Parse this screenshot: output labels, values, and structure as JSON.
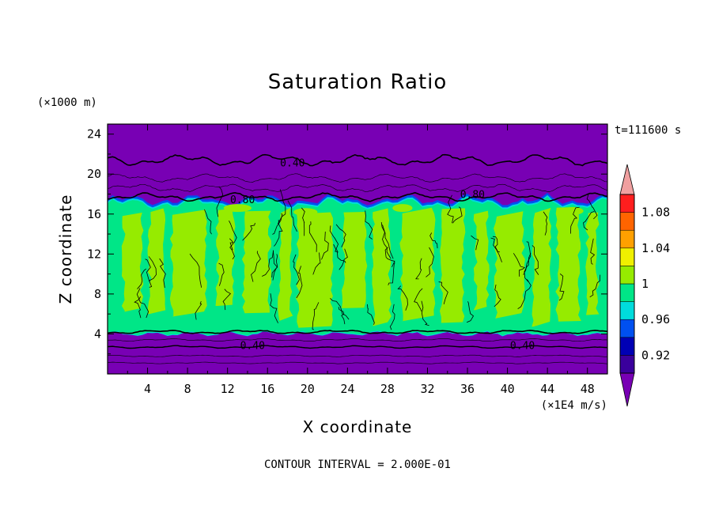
{
  "chart_data": {
    "type": "contour",
    "title": "Saturation Ratio",
    "xlabel": "X coordinate",
    "ylabel": "Z coordinate",
    "x_units": "(×1E4 m/s)",
    "y_units": "(×1000 m)",
    "time_label": "t=111600 s",
    "footer": "CONTOUR INTERVAL = 2.000E-01",
    "xlim": [
      0,
      50
    ],
    "ylim": [
      0,
      25
    ],
    "x_ticks": [
      "4",
      "8",
      "12",
      "16",
      "20",
      "24",
      "28",
      "32",
      "36",
      "40",
      "44",
      "48"
    ],
    "y_ticks": [
      "4",
      "8",
      "12",
      "16",
      "20",
      "24"
    ],
    "contour_labels": [
      {
        "text": "0.40",
        "x": 18.5,
        "z": 21.1
      },
      {
        "text": "0.80",
        "x": 13.5,
        "z": 17.4
      },
      {
        "text": "0.80",
        "x": 36.5,
        "z": 17.9
      },
      {
        "text": "0.40",
        "x": 14.5,
        "z": 2.8
      },
      {
        "text": "0.40",
        "x": 41.5,
        "z": 2.8
      }
    ],
    "colorbar": {
      "levels": [
        0.9,
        0.92,
        0.94,
        0.96,
        0.98,
        1.0,
        1.02,
        1.04,
        1.06,
        1.08,
        1.1
      ],
      "labels": [
        "0.92",
        "0.96",
        "1",
        "1.04",
        "1.08"
      ],
      "colors": [
        "#3a009c",
        "#0000b4",
        "#0050f0",
        "#00dcdc",
        "#00e687",
        "#96eb00",
        "#f0f000",
        "#ffa000",
        "#ff6400",
        "#ff1e1e"
      ],
      "under_color": "#7800b4",
      "over_color": "#f0a0a0"
    },
    "regions": {
      "low_purple_top_z": 4.0,
      "cloud_top_z": 17.0,
      "colors": {
        "purple": "#7800b4",
        "green": "#00e687",
        "lime": "#96eb00",
        "blue": "#0050f0",
        "cyan": "#00dcdc"
      }
    }
  }
}
